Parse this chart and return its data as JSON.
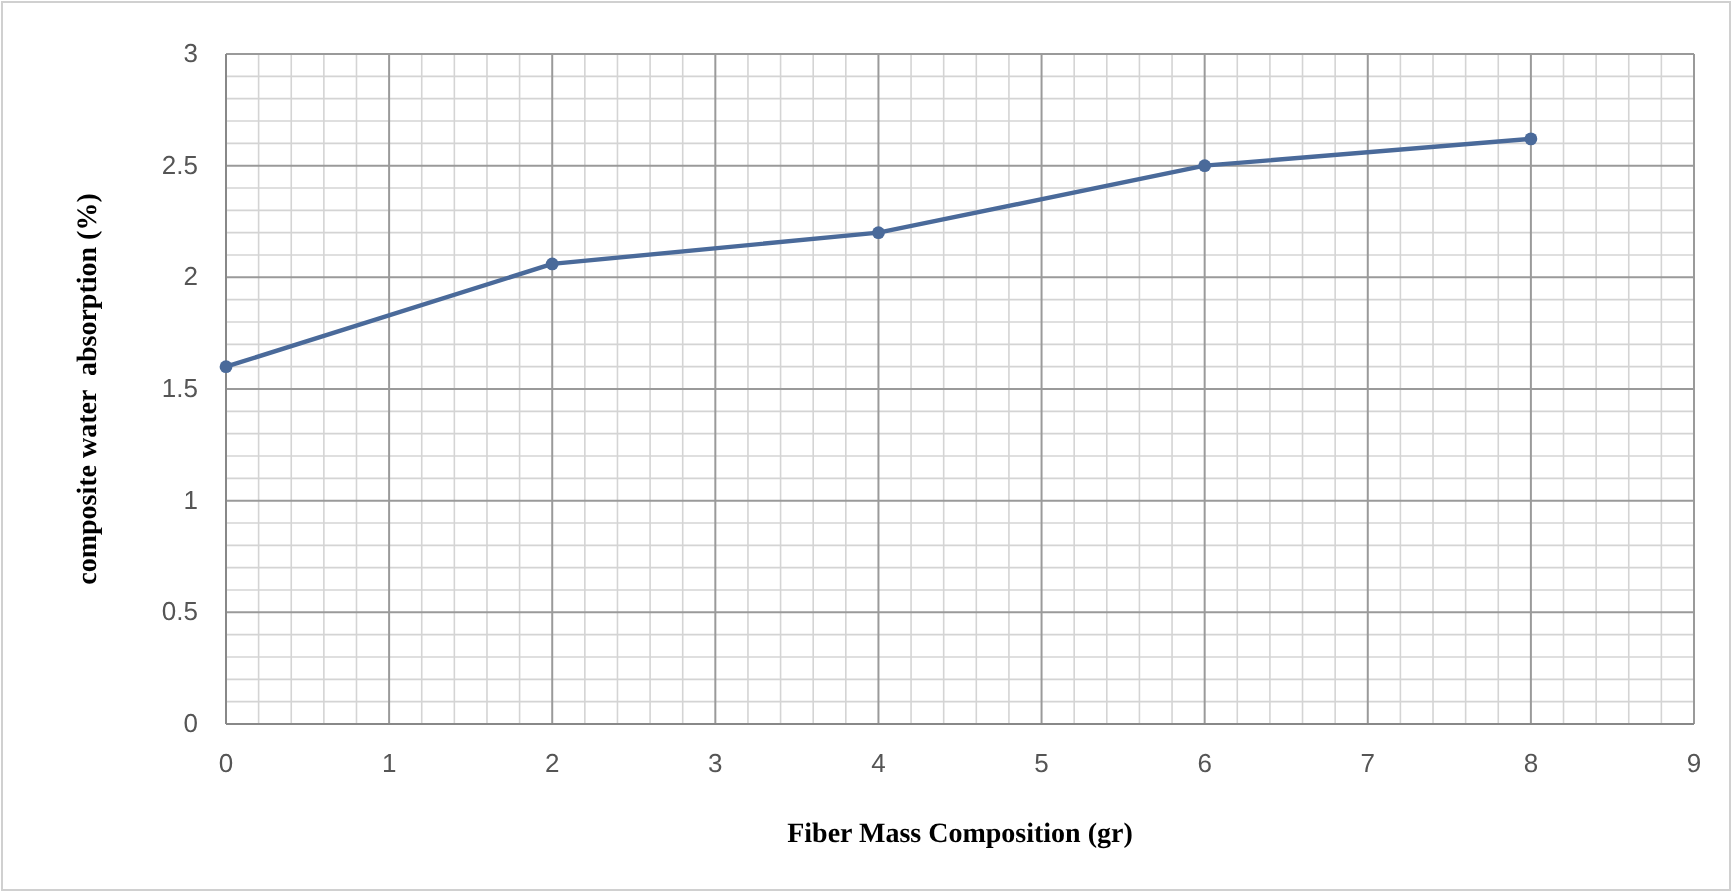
{
  "chart_data": {
    "type": "line",
    "xlabel": "Fiber Mass Composition (gr)",
    "ylabel": "composite water  absorption (%)",
    "x": [
      0,
      2,
      4,
      6,
      8
    ],
    "series": [
      {
        "color": "#4a6a9a",
        "values": [
          1.6,
          2.06,
          2.2,
          2.5,
          2.62
        ]
      }
    ],
    "xlim": [
      0,
      9
    ],
    "xticks": [
      0,
      1,
      2,
      3,
      4,
      5,
      6,
      7,
      8,
      9
    ],
    "ylim": [
      0,
      3
    ],
    "yticks": [
      0,
      0.5,
      1,
      1.5,
      2,
      2.5,
      3
    ],
    "grid": true,
    "marker": "circle",
    "line_style": "solid"
  }
}
